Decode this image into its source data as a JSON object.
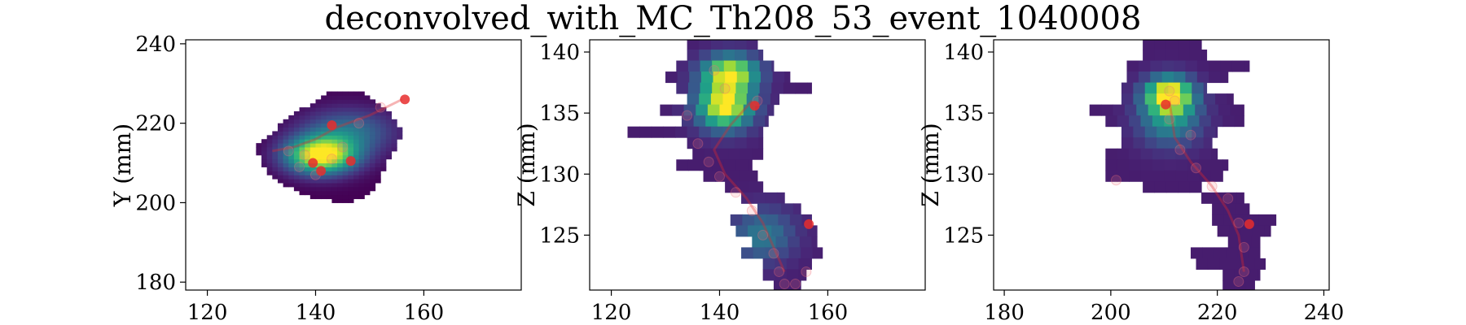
{
  "figure": {
    "title": "deconvolved_with_MC_Th208_53_event_1040008"
  },
  "chart_data": [
    {
      "type": "heatmap",
      "panel": "left",
      "xlabel": "",
      "ylabel": "Y (mm)",
      "xlim": [
        116,
        178
      ],
      "ylim": [
        178,
        241
      ],
      "xticks": [
        "120",
        "140",
        "160"
      ],
      "xtick_values": [
        120,
        140,
        160
      ],
      "yticks": [
        "180",
        "200",
        "220",
        "240"
      ],
      "ytick_values": [
        180,
        200,
        220,
        240
      ],
      "colormap": "viridis",
      "blobs": [
        {
          "cx": 141,
          "cy": 212,
          "sx": 4.5,
          "sy": 3.2,
          "w": 1.0
        },
        {
          "cx": 146,
          "cy": 218,
          "sx": 6,
          "sy": 4,
          "w": 0.35
        }
      ],
      "mask": {
        "outline": [
          [
            129,
            214
          ],
          [
            131,
            208
          ],
          [
            135,
            204
          ],
          [
            140,
            201
          ],
          [
            146,
            200
          ],
          [
            150,
            202
          ],
          [
            152,
            206
          ],
          [
            153,
            210
          ],
          [
            155,
            214
          ],
          [
            156,
            218
          ],
          [
            153,
            224
          ],
          [
            149,
            228
          ],
          [
            143,
            228
          ],
          [
            138,
            224
          ],
          [
            133,
            219
          ]
        ],
        "step": 1
      },
      "points_solid": [
        [
          156.5,
          226
        ],
        [
          143,
          219.5
        ],
        [
          146.5,
          210.5
        ],
        [
          139.5,
          210
        ],
        [
          141,
          208
        ]
      ],
      "points_faint": [
        [
          135,
          213
        ],
        [
          138,
          212
        ],
        [
          143,
          211
        ],
        [
          145,
          214
        ],
        [
          148,
          220
        ],
        [
          152,
          224
        ],
        [
          140,
          207
        ],
        [
          137,
          209
        ]
      ],
      "track": [
        [
          156,
          226
        ],
        [
          150,
          222
        ],
        [
          144,
          219
        ],
        [
          140,
          216
        ],
        [
          136,
          214
        ],
        [
          132,
          213
        ]
      ]
    },
    {
      "type": "heatmap",
      "panel": "middle",
      "xlabel": "",
      "ylabel": "Z (mm)",
      "xlim": [
        116,
        178
      ],
      "ylim": [
        120.5,
        141
      ],
      "xticks": [
        "120",
        "140",
        "160"
      ],
      "xtick_values": [
        120,
        140,
        160
      ],
      "yticks": [
        "125",
        "130",
        "135",
        "140"
      ],
      "ytick_values": [
        125,
        130,
        135,
        140
      ],
      "colormap": "viridis",
      "blobs": [
        {
          "cx": 141,
          "cy": 135.6,
          "sx": 3.5,
          "sy": 1.3,
          "w": 1.0
        },
        {
          "cx": 142,
          "cy": 138.3,
          "sx": 3.5,
          "sy": 1.0,
          "w": 0.9
        },
        {
          "cx": 148,
          "cy": 125,
          "sx": 4,
          "sy": 1.5,
          "w": 0.35
        }
      ],
      "rows": [
        {
          "z0": 140.2,
          "z1": 141,
          "x0": 134,
          "x1": 147
        },
        {
          "z0": 139.3,
          "z1": 140.2,
          "x0": 134,
          "x1": 148
        },
        {
          "z0": 138.4,
          "z1": 139.3,
          "x0": 132,
          "x1": 150
        },
        {
          "z0": 137.5,
          "z1": 138.4,
          "x0": 130,
          "x1": 153
        },
        {
          "z0": 136.6,
          "z1": 137.5,
          "x0": 132,
          "x1": 157
        },
        {
          "z0": 135.7,
          "z1": 136.6,
          "x0": 134,
          "x1": 151
        },
        {
          "z0": 134.8,
          "z1": 135.7,
          "x0": 129,
          "x1": 150
        },
        {
          "z0": 133.9,
          "z1": 134.8,
          "x0": 133,
          "x1": 149
        },
        {
          "z0": 133.0,
          "z1": 133.9,
          "x0": 123,
          "x1": 148
        },
        {
          "z0": 132.1,
          "z1": 133.0,
          "x0": 134,
          "x1": 148
        },
        {
          "z0": 131.2,
          "z1": 132.1,
          "x0": 135,
          "x1": 148
        },
        {
          "z0": 130.3,
          "z1": 131.2,
          "x0": 132,
          "x1": 146
        },
        {
          "z0": 129.4,
          "z1": 130.3,
          "x0": 137,
          "x1": 147
        },
        {
          "z0": 128.5,
          "z1": 129.4,
          "x0": 141,
          "x1": 148
        },
        {
          "z0": 127.6,
          "z1": 128.5,
          "x0": 144,
          "x1": 152
        },
        {
          "z0": 126.7,
          "z1": 127.6,
          "x0": 147,
          "x1": 155
        },
        {
          "z0": 125.8,
          "z1": 126.7,
          "x0": 142,
          "x1": 157
        },
        {
          "z0": 124.9,
          "z1": 125.8,
          "x0": 143,
          "x1": 158
        },
        {
          "z0": 124.0,
          "z1": 124.9,
          "x0": 146,
          "x1": 158
        },
        {
          "z0": 123.1,
          "z1": 124.0,
          "x0": 144,
          "x1": 159
        },
        {
          "z0": 122.2,
          "z1": 123.1,
          "x0": 148,
          "x1": 157
        },
        {
          "z0": 121.3,
          "z1": 122.2,
          "x0": 148,
          "x1": 156
        },
        {
          "z0": 120.5,
          "z1": 121.3,
          "x0": 150,
          "x1": 155
        }
      ],
      "points_solid": [
        [
          146.5,
          135.6
        ],
        [
          156.5,
          125.9
        ]
      ],
      "points_faint": [
        [
          134,
          134.8
        ],
        [
          136,
          132.5
        ],
        [
          138,
          131
        ],
        [
          140,
          129.8
        ],
        [
          143,
          128.5
        ],
        [
          146,
          127
        ],
        [
          148,
          125
        ],
        [
          150,
          123.5
        ],
        [
          151,
          122
        ],
        [
          152,
          121
        ],
        [
          154,
          121
        ],
        [
          156,
          122
        ],
        [
          147,
          136
        ],
        [
          141,
          137
        ],
        [
          139,
          138.5
        ]
      ],
      "track": [
        [
          146,
          136
        ],
        [
          142,
          134
        ],
        [
          139,
          132
        ],
        [
          141,
          130
        ],
        [
          145,
          128
        ],
        [
          148,
          126
        ],
        [
          150,
          124
        ],
        [
          152,
          122
        ]
      ]
    },
    {
      "type": "heatmap",
      "panel": "right",
      "xlabel": "",
      "ylabel": "Z (mm)",
      "xlim": [
        178,
        241
      ],
      "ylim": [
        120.5,
        141
      ],
      "xticks": [
        "180",
        "200",
        "220",
        "240"
      ],
      "xtick_values": [
        180,
        200,
        220,
        240
      ],
      "yticks": [
        "125",
        "130",
        "135",
        "140"
      ],
      "ytick_values": [
        125,
        130,
        135,
        140
      ],
      "colormap": "viridis",
      "blobs": [
        {
          "cx": 211,
          "cy": 136.5,
          "sx": 3,
          "sy": 1.0,
          "w": 1.0
        },
        {
          "cx": 211,
          "cy": 134.5,
          "sx": 4,
          "sy": 1.5,
          "w": 0.45
        }
      ],
      "rows": [
        {
          "z0": 140.2,
          "z1": 141,
          "x0": 206,
          "x1": 217
        },
        {
          "z0": 139.3,
          "z1": 140.2,
          "x0": 206,
          "x1": 218
        },
        {
          "z0": 138.4,
          "z1": 139.3,
          "x0": 203,
          "x1": 226
        },
        {
          "z0": 137.5,
          "z1": 138.4,
          "x0": 203,
          "x1": 222
        },
        {
          "z0": 136.6,
          "z1": 137.5,
          "x0": 202,
          "x1": 218
        },
        {
          "z0": 135.7,
          "z1": 136.6,
          "x0": 202,
          "x1": 223
        },
        {
          "z0": 134.8,
          "z1": 135.7,
          "x0": 196,
          "x1": 225
        },
        {
          "z0": 133.9,
          "z1": 134.8,
          "x0": 199,
          "x1": 225
        },
        {
          "z0": 133.0,
          "z1": 133.9,
          "x0": 202,
          "x1": 220
        },
        {
          "z0": 132.1,
          "z1": 133.0,
          "x0": 202,
          "x1": 219
        },
        {
          "z0": 131.2,
          "z1": 132.1,
          "x0": 199,
          "x1": 220
        },
        {
          "z0": 130.3,
          "z1": 131.2,
          "x0": 199,
          "x1": 222
        },
        {
          "z0": 129.4,
          "z1": 130.3,
          "x0": 199,
          "x1": 221
        },
        {
          "z0": 128.5,
          "z1": 129.4,
          "x0": 206,
          "x1": 217
        },
        {
          "z0": 127.6,
          "z1": 128.5,
          "x0": 217,
          "x1": 225
        },
        {
          "z0": 126.7,
          "z1": 127.6,
          "x0": 219,
          "x1": 226
        },
        {
          "z0": 125.8,
          "z1": 126.7,
          "x0": 219,
          "x1": 231
        },
        {
          "z0": 124.9,
          "z1": 125.8,
          "x0": 220,
          "x1": 230
        },
        {
          "z0": 124.0,
          "z1": 124.9,
          "x0": 222,
          "x1": 228
        },
        {
          "z0": 123.1,
          "z1": 124.0,
          "x0": 215,
          "x1": 228
        },
        {
          "z0": 122.2,
          "z1": 123.1,
          "x0": 216,
          "x1": 229
        },
        {
          "z0": 121.3,
          "z1": 122.2,
          "x0": 221,
          "x1": 228
        },
        {
          "z0": 120.5,
          "z1": 121.3,
          "x0": 221,
          "x1": 227
        }
      ],
      "points_solid": [
        [
          210.3,
          135.7
        ],
        [
          226,
          125.9
        ]
      ],
      "points_faint": [
        [
          211,
          136.8
        ],
        [
          212,
          136
        ],
        [
          211,
          134.5
        ],
        [
          213,
          132
        ],
        [
          216,
          130.5
        ],
        [
          219,
          129
        ],
        [
          222,
          128
        ],
        [
          224,
          126
        ],
        [
          225,
          124
        ],
        [
          225,
          122
        ],
        [
          224,
          121.2
        ],
        [
          201,
          129.5
        ],
        [
          215,
          133.2
        ]
      ],
      "track": [
        [
          211,
          136
        ],
        [
          212,
          133
        ],
        [
          215,
          131
        ],
        [
          219,
          129
        ],
        [
          222,
          127
        ],
        [
          224,
          125
        ],
        [
          225,
          122
        ]
      ]
    }
  ]
}
